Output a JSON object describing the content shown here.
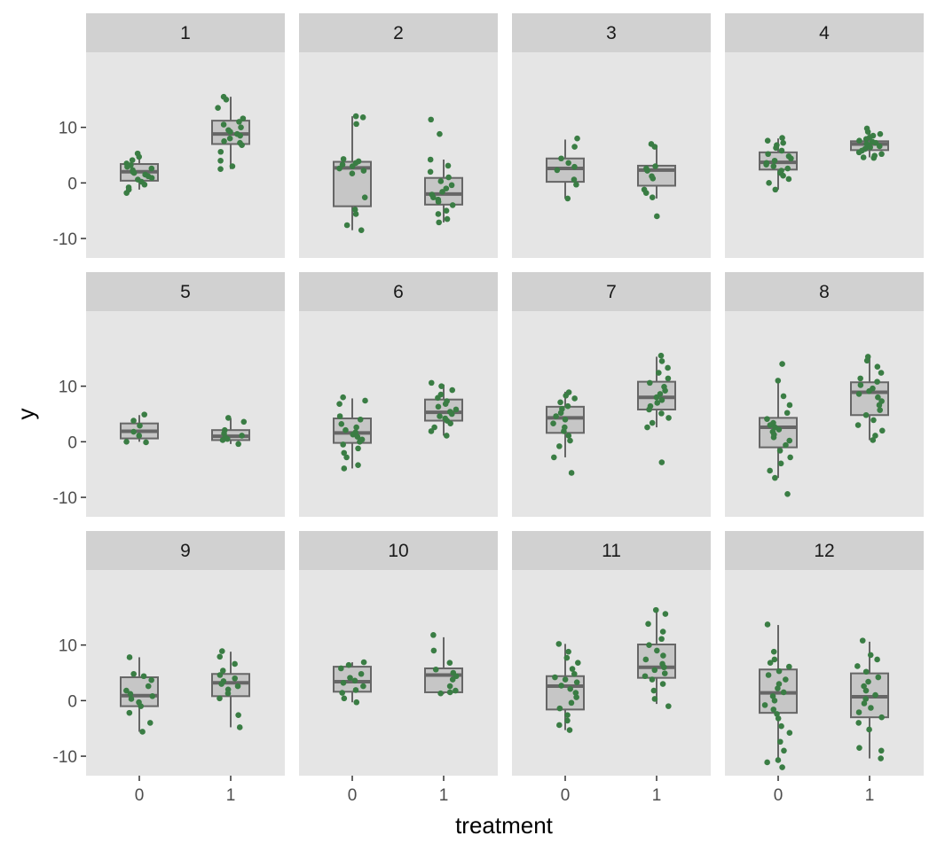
{
  "chart_data": {
    "type": "boxplot-faceted",
    "xlabel": "treatment",
    "ylabel": "y",
    "x_categories": [
      "0",
      "1"
    ],
    "y_ticks": [
      -10,
      0,
      10
    ],
    "y_tick_labels": [
      "-10",
      "0",
      "10"
    ],
    "ylim": [
      -13.5,
      23.5
    ],
    "grid": false,
    "colors": {
      "panel_background": "#e5e5e5",
      "strip_background": "#d1d1d1",
      "box_fill": "#c6c6c6",
      "box_line": "#666666",
      "point": "#3a7d44",
      "tick": "#333333"
    },
    "facets": [
      {
        "label": "1",
        "groups": [
          {
            "x": "0",
            "q1": 0.4,
            "median": 2.0,
            "q3": 3.4,
            "whisker_low": -1.2,
            "whisker_high": 4.8,
            "points": [
              5.3,
              4.7,
              4.1,
              3.5,
              3.2,
              2.9,
              2.6,
              2.3,
              2.0,
              1.8,
              1.5,
              1.2,
              0.9,
              0.6,
              0.2,
              -0.3,
              -0.8,
              -1.2,
              -1.8
            ]
          },
          {
            "x": "1",
            "q1": 7.0,
            "median": 8.8,
            "q3": 11.2,
            "whisker_low": 2.5,
            "whisker_high": 15.5,
            "points": [
              15.5,
              15.0,
              13.5,
              11.6,
              11.0,
              10.5,
              10.0,
              9.5,
              9.2,
              8.8,
              8.5,
              8.0,
              7.5,
              7.2,
              6.8,
              5.6,
              4.0,
              3.0,
              2.5
            ]
          }
        ]
      },
      {
        "label": "2",
        "groups": [
          {
            "x": "0",
            "q1": -4.2,
            "median": 2.7,
            "q3": 3.8,
            "whisker_low": -8.5,
            "whisker_high": 12.0,
            "points": [
              12.0,
              11.8,
              10.6,
              4.3,
              3.9,
              3.6,
              3.3,
              3.0,
              2.6,
              2.2,
              1.7,
              -2.6,
              -4.8,
              -5.6,
              -7.6,
              -8.5
            ]
          },
          {
            "x": "1",
            "q1": -3.9,
            "median": -2.0,
            "q3": 0.9,
            "whisker_low": -7.1,
            "whisker_high": 4.2,
            "points": [
              11.4,
              8.8,
              4.2,
              3.1,
              2.0,
              1.0,
              0.3,
              -0.4,
              -1.0,
              -1.6,
              -2.1,
              -2.6,
              -3.0,
              -3.4,
              -4.0,
              -5.0,
              -5.6,
              -6.5,
              -7.1
            ]
          }
        ]
      },
      {
        "label": "3",
        "groups": [
          {
            "x": "0",
            "q1": 0.2,
            "median": 2.6,
            "q3": 4.4,
            "whisker_low": -2.8,
            "whisker_high": 7.8,
            "points": [
              8.0,
              6.5,
              4.4,
              3.6,
              2.9,
              2.3,
              0.6,
              -0.3,
              -2.8
            ]
          },
          {
            "x": "1",
            "q1": -0.5,
            "median": 2.3,
            "q3": 3.1,
            "whisker_low": -2.8,
            "whisker_high": 6.8,
            "points": [
              7.0,
              6.5,
              3.0,
              2.6,
              2.2,
              1.2,
              0.8,
              -1.2,
              -1.8,
              -2.6,
              -6.0
            ]
          }
        ]
      },
      {
        "label": "4",
        "groups": [
          {
            "x": "0",
            "q1": 2.4,
            "median": 3.7,
            "q3": 5.5,
            "whisker_low": -1.2,
            "whisker_high": 8.0,
            "points": [
              8.1,
              7.6,
              7.2,
              6.8,
              6.3,
              5.8,
              5.2,
              4.8,
              4.4,
              4.0,
              3.6,
              3.3,
              3.0,
              2.6,
              2.2,
              1.8,
              1.3,
              0.7,
              0.0,
              -1.2
            ]
          },
          {
            "x": "1",
            "q1": 5.9,
            "median": 7.0,
            "q3": 7.5,
            "whisker_low": 4.6,
            "whisker_high": 9.3,
            "points": [
              9.8,
              9.2,
              8.8,
              8.5,
              8.2,
              7.9,
              7.6,
              7.4,
              7.2,
              7.0,
              6.8,
              6.6,
              6.4,
              6.1,
              5.8,
              5.5,
              5.2,
              4.9,
              4.6,
              4.5
            ]
          }
        ]
      },
      {
        "label": "5",
        "groups": [
          {
            "x": "0",
            "q1": 0.6,
            "median": 1.9,
            "q3": 3.3,
            "whisker_low": 0.0,
            "whisker_high": 4.8,
            "points": [
              4.9,
              3.8,
              2.9,
              1.8,
              1.1,
              0.0,
              -0.1
            ]
          },
          {
            "x": "1",
            "q1": 0.3,
            "median": 1.0,
            "q3": 2.1,
            "whisker_low": -0.4,
            "whisker_high": 4.2,
            "points": [
              4.3,
              3.6,
              2.1,
              1.5,
              1.1,
              0.8,
              0.5,
              0.3,
              -0.4
            ]
          }
        ]
      },
      {
        "label": "6",
        "groups": [
          {
            "x": "0",
            "q1": -0.2,
            "median": 1.6,
            "q3": 4.2,
            "whisker_low": -4.8,
            "whisker_high": 7.8,
            "points": [
              8.0,
              7.4,
              6.8,
              4.6,
              4.0,
              3.2,
              2.6,
              2.1,
              1.7,
              1.3,
              0.9,
              0.4,
              0.0,
              -0.5,
              -1.2,
              -2.0,
              -2.8,
              -4.2,
              -4.8
            ]
          },
          {
            "x": "1",
            "q1": 3.8,
            "median": 5.3,
            "q3": 7.6,
            "whisker_low": 1.1,
            "whisker_high": 10.3,
            "points": [
              10.6,
              10.0,
              9.3,
              8.5,
              7.9,
              7.3,
              6.8,
              6.3,
              5.8,
              5.4,
              5.0,
              4.6,
              4.2,
              3.8,
              3.3,
              2.6,
              1.9,
              1.1
            ]
          }
        ]
      },
      {
        "label": "7",
        "groups": [
          {
            "x": "0",
            "q1": 1.6,
            "median": 4.3,
            "q3": 6.3,
            "whisker_low": -2.8,
            "whisker_high": 9.0,
            "points": [
              8.9,
              8.3,
              7.8,
              7.1,
              6.4,
              5.9,
              5.2,
              4.6,
              4.0,
              3.3,
              2.6,
              1.9,
              1.1,
              0.2,
              -0.8,
              -2.8,
              -5.6
            ]
          },
          {
            "x": "1",
            "q1": 5.8,
            "median": 8.0,
            "q3": 10.8,
            "whisker_low": 2.6,
            "whisker_high": 15.3,
            "points": [
              15.5,
              14.5,
              13.3,
              12.4,
              11.4,
              10.6,
              9.9,
              9.2,
              8.6,
              8.0,
              7.5,
              7.0,
              6.4,
              5.8,
              5.1,
              4.3,
              3.4,
              2.6,
              -3.7
            ]
          }
        ]
      },
      {
        "label": "8",
        "groups": [
          {
            "x": "0",
            "q1": -1.0,
            "median": 2.6,
            "q3": 4.3,
            "whisker_low": -6.5,
            "whisker_high": 11.0,
            "points": [
              14.0,
              11.0,
              8.2,
              6.6,
              5.2,
              4.1,
              3.4,
              3.0,
              2.6,
              2.2,
              1.8,
              1.3,
              0.8,
              0.2,
              -0.6,
              -1.6,
              -2.8,
              -3.9,
              -5.2,
              -6.5,
              -9.4
            ]
          },
          {
            "x": "1",
            "q1": 4.8,
            "median": 8.9,
            "q3": 10.7,
            "whisker_low": 0.3,
            "whisker_high": 15.1,
            "points": [
              15.3,
              14.6,
              13.5,
              12.4,
              11.4,
              10.8,
              10.2,
              9.6,
              9.1,
              8.6,
              8.0,
              7.3,
              6.6,
              5.7,
              4.8,
              3.9,
              3.0,
              2.0,
              1.1,
              0.3
            ]
          }
        ]
      },
      {
        "label": "9",
        "groups": [
          {
            "x": "0",
            "q1": -1.0,
            "median": 0.9,
            "q3": 4.2,
            "whisker_low": -5.6,
            "whisker_high": 7.8,
            "points": [
              7.8,
              4.8,
              4.4,
              3.7,
              2.6,
              1.8,
              1.2,
              0.8,
              0.3,
              -0.3,
              -1.0,
              -2.2,
              -4.0,
              -5.6
            ]
          },
          {
            "x": "1",
            "q1": 0.8,
            "median": 3.2,
            "q3": 4.8,
            "whisker_low": -4.8,
            "whisker_high": 8.8,
            "points": [
              8.9,
              7.9,
              6.6,
              5.4,
              4.6,
              4.0,
              3.5,
              3.0,
              2.6,
              2.0,
              1.3,
              0.4,
              -2.6,
              -4.8
            ]
          }
        ]
      },
      {
        "label": "10",
        "groups": [
          {
            "x": "0",
            "q1": 1.6,
            "median": 3.4,
            "q3": 6.1,
            "whisker_low": -0.3,
            "whisker_high": 6.9,
            "points": [
              6.9,
              6.4,
              5.8,
              4.8,
              4.1,
              3.6,
              3.2,
              2.6,
              1.9,
              1.4,
              0.4,
              -0.3
            ]
          },
          {
            "x": "1",
            "q1": 1.5,
            "median": 4.6,
            "q3": 5.8,
            "whisker_low": 1.2,
            "whisker_high": 11.4,
            "points": [
              11.8,
              9.0,
              6.8,
              5.6,
              5.0,
              4.4,
              3.8,
              2.6,
              1.8,
              1.5,
              1.3
            ]
          }
        ]
      },
      {
        "label": "11",
        "groups": [
          {
            "x": "0",
            "q1": -1.6,
            "median": 2.6,
            "q3": 4.4,
            "whisker_low": -5.3,
            "whisker_high": 10.2,
            "points": [
              10.2,
              8.8,
              7.7,
              6.8,
              5.7,
              4.8,
              4.2,
              3.8,
              3.3,
              2.7,
              2.1,
              1.4,
              0.6,
              -0.4,
              -1.4,
              -2.6,
              -3.6,
              -4.4,
              -5.3
            ]
          },
          {
            "x": "1",
            "q1": 4.1,
            "median": 6.0,
            "q3": 10.1,
            "whisker_low": -0.6,
            "whisker_high": 16.3,
            "points": [
              16.3,
              15.6,
              13.8,
              12.4,
              11.1,
              10.0,
              9.0,
              8.1,
              7.4,
              6.6,
              6.0,
              5.5,
              4.9,
              4.4,
              3.8,
              3.0,
              1.8,
              0.3,
              -1.0
            ]
          }
        ]
      },
      {
        "label": "12",
        "groups": [
          {
            "x": "0",
            "q1": -2.2,
            "median": 1.4,
            "q3": 5.6,
            "whisker_low": -11.2,
            "whisker_high": 13.6,
            "points": [
              13.7,
              8.8,
              7.4,
              6.8,
              6.1,
              5.3,
              4.6,
              3.8,
              3.0,
              2.2,
              1.5,
              0.8,
              0.0,
              -0.8,
              -1.6,
              -2.4,
              -3.2,
              -4.6,
              -5.8,
              -7.4,
              -9.0,
              -10.7,
              -11.1,
              -12.0
            ]
          },
          {
            "x": "1",
            "q1": -3.0,
            "median": 0.7,
            "q3": 4.9,
            "whisker_low": -10.4,
            "whisker_high": 10.6,
            "points": [
              10.8,
              8.2,
              7.4,
              6.2,
              5.2,
              4.2,
              3.4,
              2.6,
              1.8,
              1.0,
              0.3,
              -0.5,
              -1.3,
              -2.1,
              -3.0,
              -4.0,
              -5.2,
              -8.5,
              -9.0,
              -10.4
            ]
          }
        ]
      }
    ]
  }
}
